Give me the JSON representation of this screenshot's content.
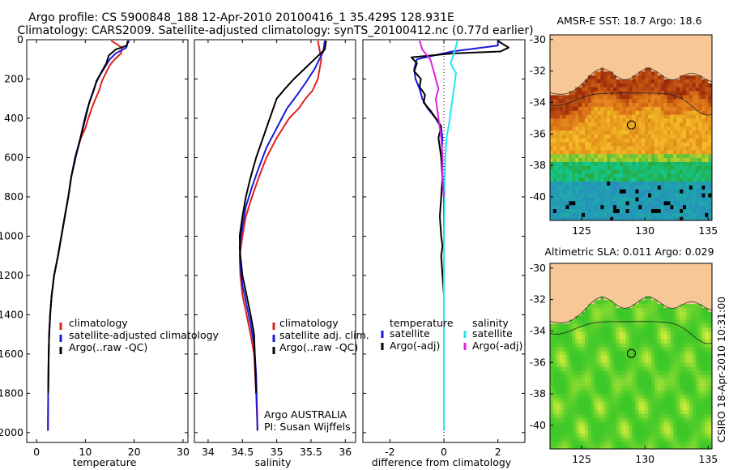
{
  "header": {
    "line1": "Argo profile: CS 5900848_188 12-Apr-2010 20100416_1 35.429S 128.931E",
    "line2": "Climatology: CARS2009. Satellite-adjusted climatology: synTS_20100412.nc (0.77d earlier)"
  },
  "stamp": "CSIRO 18-Apr-2010 10:31:00",
  "colors": {
    "climatology": "#e02020",
    "satellite": "#1a1ad8",
    "argo": "#000000",
    "sal_satellite": "#22e6f0",
    "sal_argo": "#e020e0",
    "land": "#f7c896",
    "coast": "#333333"
  },
  "chart_data": [
    {
      "type": "line",
      "xlabel": "temperature",
      "ylabel": "",
      "xlim": [
        -2,
        31
      ],
      "ylim": [
        2050,
        0
      ],
      "xticks": [
        0,
        10,
        20,
        30
      ],
      "xticklabels": [
        "0",
        "10",
        "20",
        "30"
      ],
      "yticks": [
        0,
        200,
        400,
        600,
        800,
        1000,
        1200,
        1400,
        1600,
        1800,
        2000
      ],
      "yticklabels": [
        "0",
        "200",
        "400",
        "600",
        "800",
        "1000",
        "1200",
        "1400",
        "1600",
        "1800",
        "2000"
      ],
      "legend": [
        "climatology",
        "satellite-adjusted climatology",
        "Argo(..raw -QC)"
      ],
      "legend_placement": "bottom-left",
      "series": [
        {
          "name": "climatology",
          "color": "#e02020",
          "x": [
            15.3,
            17.5,
            17.3,
            16,
            15,
            14.2,
            13.4,
            12.8,
            12.1,
            11.3,
            10.6,
            10,
            9.1,
            7.9,
            7.1,
            6.5,
            5.8,
            5.1,
            4.4,
            3.6,
            3.1,
            2.8,
            2.6,
            2.5,
            2.4,
            2.35
          ],
          "y": [
            5,
            40,
            70,
            100,
            130,
            170,
            210,
            260,
            300,
            350,
            400,
            450,
            500,
            600,
            700,
            800,
            900,
            1000,
            1100,
            1200,
            1300,
            1400,
            1500,
            1600,
            1800,
            1990
          ]
        },
        {
          "name": "satellite-adjusted climatology",
          "color": "#1a1ad8",
          "x": [
            19,
            18.6,
            18.4,
            16.2,
            15,
            14,
            13,
            12.2,
            11.5,
            10.8,
            10.2,
            9.7,
            9,
            7.9,
            7.1,
            6.5,
            5.8,
            5.1,
            4.4,
            3.6,
            3.1,
            2.8,
            2.6,
            2.5,
            2.4,
            2.35
          ],
          "y": [
            5,
            20,
            40,
            70,
            100,
            140,
            180,
            220,
            270,
            320,
            370,
            420,
            500,
            600,
            700,
            800,
            900,
            1000,
            1100,
            1200,
            1300,
            1400,
            1500,
            1600,
            1800,
            1990
          ]
        },
        {
          "name": "Argo(..raw -QC)",
          "color": "#000000",
          "x": [
            18.7,
            18.5,
            16.2,
            14.8,
            14.3,
            13.4,
            12.3,
            11.7,
            10.8,
            10.2,
            9.6,
            9,
            8,
            7.1,
            6.5,
            5.8,
            5.1,
            4.4,
            3.6,
            3.1,
            2.8,
            2.6,
            2.5,
            2.4
          ],
          "y": [
            5,
            30,
            50,
            80,
            120,
            160,
            210,
            260,
            320,
            380,
            440,
            500,
            600,
            700,
            800,
            900,
            1000,
            1100,
            1200,
            1300,
            1400,
            1500,
            1600,
            1800
          ]
        }
      ]
    },
    {
      "type": "line",
      "xlabel": "salinity",
      "ylabel": "",
      "xlim": [
        33.8,
        36.15
      ],
      "ylim": [
        2050,
        0
      ],
      "xticks": [
        34,
        34.5,
        35,
        35.5,
        36
      ],
      "xticklabels": [
        "34",
        "34.5",
        "35",
        "35.5",
        "36"
      ],
      "legend": [
        "climatology",
        "satellite adj. clim.",
        "Argo(..raw -QC)"
      ],
      "legend_placement": "bottom-right",
      "annotation": [
        "Argo AUSTRALIA",
        "PI: Susan Wijffels"
      ],
      "series": [
        {
          "name": "climatology",
          "color": "#e02020",
          "x": [
            35.6,
            35.65,
            35.6,
            35.52,
            35.42,
            35.32,
            35.18,
            35.0,
            34.85,
            34.74,
            34.64,
            34.55,
            34.5,
            34.46,
            34.47,
            34.5,
            34.56,
            34.62,
            34.67,
            34.7,
            34.72
          ],
          "y": [
            5,
            100,
            200,
            260,
            300,
            350,
            400,
            500,
            600,
            700,
            800,
            900,
            1000,
            1100,
            1200,
            1300,
            1400,
            1500,
            1600,
            1800,
            1990
          ]
        },
        {
          "name": "satellite adj. clim.",
          "color": "#1a1ad8",
          "x": [
            35.7,
            35.68,
            35.55,
            35.42,
            35.3,
            35.15,
            35.0,
            34.85,
            34.74,
            34.64,
            34.55,
            34.5,
            34.46,
            34.47,
            34.5,
            34.56,
            34.62,
            34.67,
            34.7,
            34.72
          ],
          "y": [
            5,
            60,
            150,
            220,
            280,
            350,
            450,
            550,
            650,
            750,
            850,
            950,
            1050,
            1150,
            1250,
            1350,
            1450,
            1550,
            1700,
            1990
          ]
        },
        {
          "name": "Argo(..raw -QC)",
          "color": "#000000",
          "x": [
            35.72,
            35.7,
            35.55,
            35.4,
            35.25,
            35.12,
            35.0,
            34.9,
            34.8,
            34.7,
            34.62,
            34.55,
            34.5,
            34.46,
            34.47,
            34.5,
            34.56,
            34.62,
            34.67,
            34.7
          ],
          "y": [
            5,
            50,
            100,
            150,
            200,
            250,
            300,
            400,
            500,
            600,
            700,
            800,
            900,
            1000,
            1100,
            1200,
            1300,
            1400,
            1500,
            1800
          ]
        }
      ]
    },
    {
      "type": "line",
      "xlabel": "difference from climatology",
      "ylabel": "",
      "xlim": [
        -3,
        3
      ],
      "ylim": [
        2050,
        0
      ],
      "xticks": [
        -2,
        0,
        2
      ],
      "xticklabels": [
        "-2",
        "0",
        "2"
      ],
      "legend": [
        "temperature",
        "satellite",
        "Argo(-adj)",
        "salinity",
        "satellite",
        "Argo(-adj)"
      ],
      "legend_placement": "middle",
      "series": [
        {
          "name": "satellite",
          "group": "temperature",
          "color": "#1a1ad8",
          "x": [
            2.0,
            2.0,
            0.3,
            -1.0,
            -1.1,
            -1.05,
            -0.9,
            -0.8,
            -0.6,
            -0.3,
            -0.1,
            -0.05,
            -0.1,
            -0.05,
            0,
            0,
            0,
            0,
            0
          ],
          "y": [
            5,
            30,
            60,
            100,
            150,
            200,
            250,
            300,
            350,
            400,
            450,
            500,
            600,
            700,
            800,
            1000,
            1200,
            1600,
            1990
          ]
        },
        {
          "name": "Argo(-adj)",
          "group": "temperature",
          "color": "#000000",
          "x": [
            2.0,
            2.1,
            2.4,
            2.1,
            0.3,
            -1.2,
            -1.0,
            -1.1,
            -0.85,
            -0.9,
            -0.7,
            -0.75,
            -0.5,
            -0.3,
            -0.1,
            -0.2,
            -0.1,
            -0.05,
            -0.1,
            -0.15,
            -0.1,
            -0.05,
            -0.1,
            0
          ],
          "y": [
            5,
            15,
            40,
            60,
            70,
            90,
            120,
            160,
            200,
            240,
            280,
            320,
            360,
            400,
            440,
            500,
            600,
            700,
            800,
            900,
            1000,
            1050,
            1100,
            1300
          ]
        },
        {
          "name": "satellite",
          "group": "salinity",
          "color": "#22e6f0",
          "x": [
            0.5,
            0.4,
            0.25,
            0.45,
            0.4,
            0.35,
            0.3,
            0.25,
            0.2,
            0.1,
            0.05,
            0.02,
            0,
            0,
            0
          ],
          "y": [
            5,
            60,
            120,
            170,
            220,
            270,
            320,
            370,
            420,
            500,
            600,
            800,
            1000,
            1500,
            1990
          ]
        },
        {
          "name": "Argo(-adj)",
          "group": "salinity",
          "color": "#e020e0",
          "x": [
            -0.9,
            -0.8,
            -0.5,
            -0.4,
            -0.3,
            -0.2,
            -0.3,
            -0.25,
            -0.2,
            -0.15,
            -0.1,
            -0.05,
            -0.05,
            0
          ],
          "y": [
            5,
            50,
            100,
            150,
            200,
            250,
            300,
            350,
            400,
            450,
            500,
            600,
            700,
            800
          ]
        }
      ]
    },
    {
      "type": "heatmap",
      "title": "AMSR-E SST: 18.7 Argo: 18.6",
      "xlim": [
        122.5,
        135.3
      ],
      "ylim": [
        -41.5,
        -29.7
      ],
      "xticks": [
        125,
        130,
        135
      ],
      "xticklabels": [
        "125",
        "130",
        "135"
      ],
      "yticks": [
        -30,
        -32,
        -34,
        -36,
        -38,
        -40
      ],
      "yticklabels": [
        "-30",
        "-32",
        "-34",
        "-36",
        "-38",
        "-40"
      ],
      "marker": {
        "lon": 128.931,
        "lat": -35.429
      }
    },
    {
      "type": "heatmap",
      "title": "Altimetric SLA: 0.011 Argo: 0.029",
      "xlim": [
        122.5,
        135.3
      ],
      "ylim": [
        -41.5,
        -29.7
      ],
      "xticks": [
        125,
        130,
        135
      ],
      "xticklabels": [
        "125",
        "130",
        "135"
      ],
      "yticks": [
        -30,
        -32,
        -34,
        -36,
        -38,
        -40
      ],
      "yticklabels": [
        "-30",
        "-32",
        "-34",
        "-36",
        "-38",
        "-40"
      ],
      "marker": {
        "lon": 128.931,
        "lat": -35.429
      }
    }
  ]
}
